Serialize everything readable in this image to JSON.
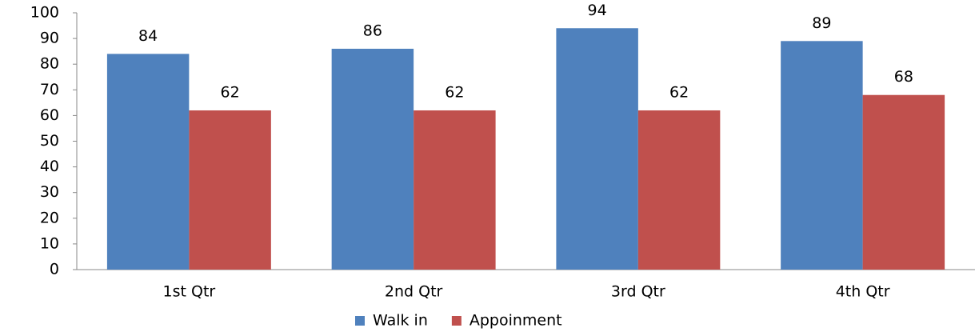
{
  "chart_data": {
    "type": "bar",
    "categories": [
      "1st Qtr",
      "2nd Qtr",
      "3rd Qtr",
      "4th Qtr"
    ],
    "series": [
      {
        "name": "Walk in",
        "color": "#4f81bd",
        "values": [
          84,
          86,
          94,
          89
        ]
      },
      {
        "name": "Appoinment",
        "color": "#c0504d",
        "values": [
          62,
          62,
          62,
          68
        ]
      }
    ],
    "ylim": [
      0,
      100
    ],
    "yticks": [
      0,
      10,
      20,
      30,
      40,
      50,
      60,
      70,
      80,
      90,
      100
    ],
    "grid": false,
    "legend": "bottom"
  }
}
